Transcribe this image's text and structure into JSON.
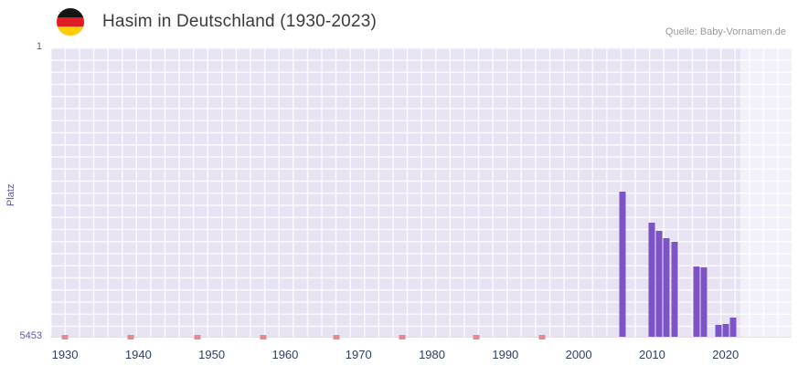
{
  "header": {
    "title": "Hasim in Deutschland (1930-2023)",
    "source": "Quelle: Baby-Vornamen.de",
    "flag_colors": [
      "#151515",
      "#dd1c24",
      "#ffcc00"
    ]
  },
  "chart_data": {
    "type": "bar",
    "title": "Hasim in Deutschland (1930-2023)",
    "xlabel": "",
    "ylabel": "Platz",
    "y_axis": {
      "min": 1,
      "max": 5453,
      "inverted": true,
      "top_label": "1",
      "bottom_label": "5453"
    },
    "x_axis": {
      "min": 1928,
      "max": 2029,
      "ticks": [
        1930,
        1940,
        1950,
        1960,
        1970,
        1980,
        1990,
        2000,
        2010,
        2020
      ]
    },
    "recent_band_start": 2022,
    "grid": true,
    "legend": false,
    "series": [
      {
        "name": "Platz",
        "points": [
          {
            "year": 2006,
            "rank": 2710
          },
          {
            "year": 2010,
            "rank": 3310
          },
          {
            "year": 2011,
            "rank": 3460
          },
          {
            "year": 2012,
            "rank": 3600
          },
          {
            "year": 2013,
            "rank": 3670
          },
          {
            "year": 2016,
            "rank": 4120
          },
          {
            "year": 2017,
            "rank": 4140
          },
          {
            "year": 2019,
            "rank": 5230
          },
          {
            "year": 2020,
            "rank": 5210
          },
          {
            "year": 2021,
            "rank": 5090
          }
        ]
      }
    ],
    "unranked_marker_years": [
      1930,
      1939,
      1948,
      1957,
      1967,
      1976,
      1986,
      1995
    ],
    "colors": {
      "bar": "#7d54c5",
      "marker": "#e9898f",
      "plot_bg": "#e7e3f3",
      "grid_line": "#ffffff",
      "band": "rgba(255,255,255,0.45)",
      "x_label": "#2e3f60",
      "y_label": "#5f55a9",
      "title": "#3a3a3a",
      "source": "#9a9a9a"
    }
  }
}
